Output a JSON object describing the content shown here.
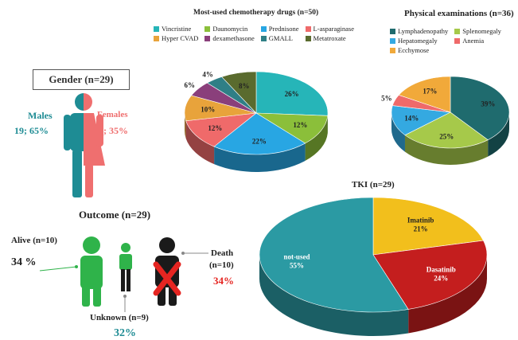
{
  "chart_data": [
    {
      "type": "pie",
      "title": "Most-used chemotherapy drugs (n=50)",
      "categories": [
        "Vincristine",
        "Daunomycin",
        "Prednisone",
        "L-asparaginase",
        "Hyper CVAD",
        "dexamethasone",
        "GMALL",
        "Metatroxate"
      ],
      "values": [
        26,
        12,
        22,
        12,
        10,
        6,
        4,
        8
      ],
      "data_labels": [
        "26%",
        "12%",
        "22%",
        "12%",
        "10%",
        "6%",
        "4%",
        "8%"
      ],
      "colors": [
        "#26b5b8",
        "#8bbf3a",
        "#28a6e3",
        "#ef6a6a",
        "#e8a33b",
        "#8a3f7b",
        "#2f7f86",
        "#5a6b2e"
      ],
      "legend_position": "top"
    },
    {
      "type": "pie",
      "title": "Physical examinations (n=36)",
      "categories": [
        "Lymphadenopathy",
        "Splenomegaly",
        "Hepatomegaly",
        "Anemia",
        "Ecchymose"
      ],
      "values": [
        39,
        25,
        14,
        5,
        17
      ],
      "data_labels": [
        "39%",
        "25%",
        "14%",
        "5%",
        "17%"
      ],
      "colors": [
        "#1f6b6e",
        "#a6c94a",
        "#34a9e1",
        "#ef6a6a",
        "#f1a93a"
      ],
      "legend_position": "top"
    },
    {
      "type": "pie",
      "title": "TKI (n=29)",
      "categories": [
        "Imatinib",
        "Dasatinib",
        "not-used"
      ],
      "values": [
        21,
        24,
        55
      ],
      "data_labels": [
        "Imatinib\n21%",
        "Dasatinib\n24%",
        "not-used\n55%"
      ],
      "colors": [
        "#f2bf1c",
        "#c41e1e",
        "#2b9aa3"
      ]
    }
  ],
  "gender": {
    "title": "Gender (n=29)",
    "males_label": "Males",
    "males_value": "19; 65%",
    "females_label": "Females",
    "females_value": "10; 35%",
    "male_color": "#1e8c94",
    "female_color": "#ef6f6f"
  },
  "outcome": {
    "title": "Outcome (n=29)",
    "alive_label": "Alive (n=10)",
    "alive_value": "34 %",
    "death_label_1": "Death",
    "death_label_2": "(n=10)",
    "death_value": "34%",
    "unknown_label": "Unknown (n=9)",
    "unknown_value": "32%",
    "alive_color": "#2fb34a",
    "death_color": "#e52521",
    "unknown_value_color": "#1e8c94"
  }
}
